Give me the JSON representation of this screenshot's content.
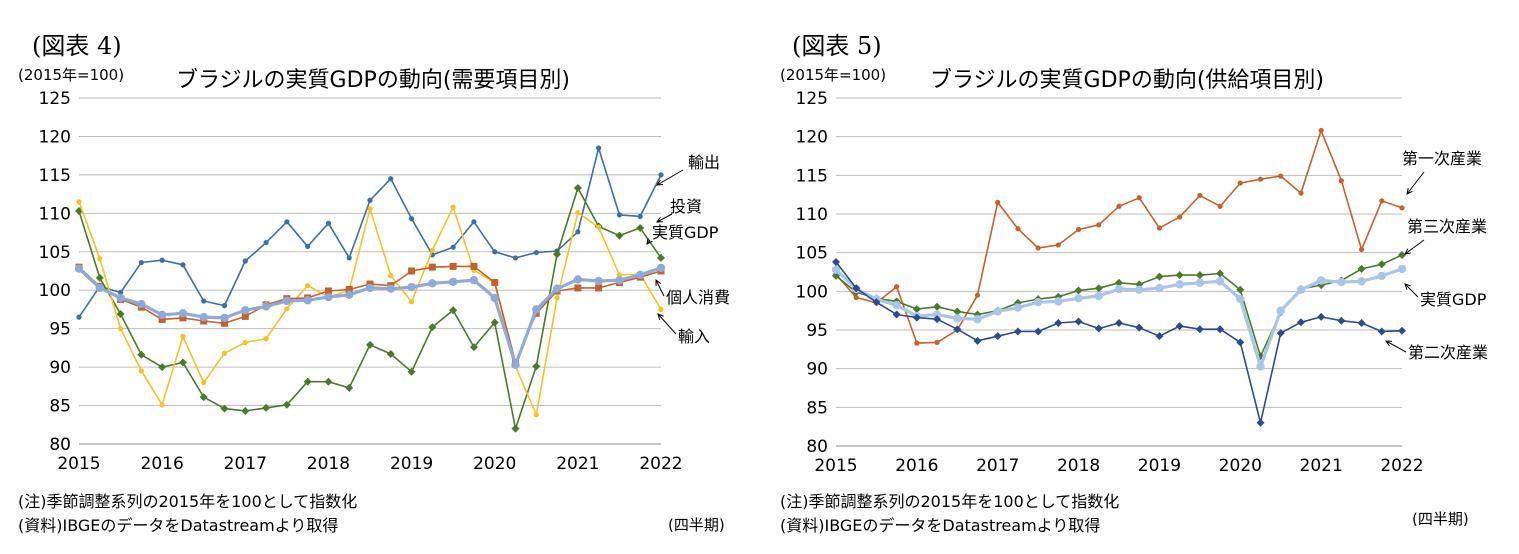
{
  "charts": [
    {
      "figure_label": "(図表 4)",
      "unit_label": "(2015年=100)",
      "title": "ブラジルの実質GDPの動向(需要項目別)",
      "note": "(注)季節調整系列の2015年を100として指数化",
      "source": "(資料)IBGEのデータをDatastreamより取得",
      "frequency": "(四半期)"
    },
    {
      "figure_label": "(図表 5)",
      "unit_label": "(2015年=100)",
      "title": "ブラジルの実質GDPの動向(供給項目別)",
      "note": "(注)季節調整系列の2015年を100として指数化",
      "source": "(資料)IBGEのデータをDatastreamより取得",
      "frequency": "(四半期)"
    }
  ],
  "chart_data": [
    {
      "type": "line",
      "title": "ブラジルの実質GDPの動向(需要項目別)",
      "ylabel": "(2015年=100)",
      "xlabel": "",
      "ylim": [
        80,
        125
      ],
      "yticks": [
        80,
        85,
        90,
        95,
        100,
        105,
        110,
        115,
        120,
        125
      ],
      "xticks": [
        "2015",
        "2016",
        "2017",
        "2018",
        "2019",
        "2020",
        "2021",
        "2022"
      ],
      "x_quarters_start": "2015",
      "grid": true,
      "series": [
        {
          "name": "輸出",
          "color": "#3a6fa8",
          "marker": "circle",
          "values": [
            96.5,
            100.5,
            99.7,
            103.6,
            103.9,
            103.3,
            98.6,
            98.0,
            103.8,
            106.2,
            108.9,
            105.7,
            108.7,
            104.2,
            111.7,
            114.5,
            109.3,
            104.6,
            105.6,
            108.9,
            105.0,
            104.2,
            104.9,
            105.1,
            107.6,
            118.5,
            109.8,
            109.6,
            115.0
          ]
        },
        {
          "name": "投資",
          "color": "#4a7a2c",
          "marker": "diamond",
          "values": [
            110.3,
            101.6,
            96.9,
            91.6,
            90.0,
            90.6,
            86.1,
            84.6,
            84.3,
            84.7,
            85.1,
            88.1,
            88.1,
            87.3,
            92.9,
            91.7,
            89.4,
            95.2,
            97.4,
            92.6,
            95.8,
            82.0,
            90.1,
            104.7,
            113.3,
            108.3,
            107.1,
            108.1,
            104.2
          ]
        },
        {
          "name": "輸入",
          "color": "#f5c028",
          "marker": "circle",
          "values": [
            111.5,
            104.1,
            95.0,
            89.5,
            85.1,
            94.0,
            88.0,
            91.8,
            93.2,
            93.7,
            97.6,
            100.6,
            99.1,
            100.0,
            110.6,
            101.9,
            98.5,
            105.2,
            110.8,
            102.6,
            101.0,
            90.1,
            83.8,
            99.0,
            110.1,
            108.2,
            102.0,
            102.1,
            97.5
          ]
        },
        {
          "name": "個人消費",
          "color": "#c5622b",
          "marker": "square",
          "values": [
            103.0,
            100.5,
            98.8,
            97.8,
            96.2,
            96.4,
            96.0,
            95.7,
            96.6,
            98.1,
            98.9,
            99.0,
            99.9,
            100.1,
            100.8,
            100.6,
            102.5,
            103.0,
            103.1,
            103.1,
            101.0,
            90.6,
            97.0,
            99.9,
            100.3,
            100.3,
            101.0,
            101.7,
            102.5
          ]
        },
        {
          "name": "実質GDP",
          "color": "#8faad9",
          "marker": "circle",
          "values": [
            102.8,
            100.3,
            99.0,
            98.2,
            96.8,
            97.0,
            96.5,
            96.4,
            97.4,
            97.9,
            98.6,
            98.7,
            99.1,
            99.4,
            100.3,
            100.2,
            100.4,
            100.9,
            101.1,
            101.3,
            99.0,
            90.3,
            97.5,
            100.2,
            101.4,
            101.2,
            101.3,
            102.0,
            102.9
          ]
        }
      ],
      "annotations": [
        "輸出",
        "投資",
        "実質GDP",
        "個人消費",
        "輸入"
      ]
    },
    {
      "type": "line",
      "title": "ブラジルの実質GDPの動向(供給項目別)",
      "ylabel": "(2015年=100)",
      "xlabel": "",
      "ylim": [
        80,
        125
      ],
      "yticks": [
        80,
        85,
        90,
        95,
        100,
        105,
        110,
        115,
        120,
        125
      ],
      "xticks": [
        "2015",
        "2016",
        "2017",
        "2018",
        "2019",
        "2020",
        "2021",
        "2022"
      ],
      "x_quarters_start": "2015",
      "grid": true,
      "series": [
        {
          "name": "第一次産業",
          "color": "#c5622b",
          "marker": "circle",
          "values": [
            102.2,
            99.2,
            98.5,
            100.6,
            93.3,
            93.4,
            95.0,
            99.5,
            111.5,
            108.1,
            105.6,
            106.0,
            108.0,
            108.6,
            111.0,
            112.1,
            108.2,
            109.6,
            112.4,
            111.0,
            114.0,
            114.5,
            114.9,
            112.7,
            120.8,
            114.3,
            105.4,
            111.7,
            110.8
          ]
        },
        {
          "name": "第三次産業",
          "color": "#4a7a2c",
          "marker": "diamond",
          "values": [
            102.0,
            99.9,
            99.1,
            98.7,
            97.7,
            98.0,
            97.4,
            97.0,
            97.5,
            98.5,
            99.0,
            99.3,
            100.1,
            100.4,
            101.1,
            100.9,
            101.9,
            102.1,
            102.1,
            102.3,
            100.2,
            91.6,
            97.3,
            100.3,
            100.8,
            101.4,
            102.9,
            103.5,
            104.7
          ]
        },
        {
          "name": "実質GDP",
          "color": "#a9c6e8",
          "marker": "circle",
          "values": [
            102.8,
            100.3,
            99.0,
            98.2,
            96.8,
            97.0,
            96.5,
            96.4,
            97.4,
            97.9,
            98.6,
            98.7,
            99.1,
            99.4,
            100.3,
            100.2,
            100.4,
            100.9,
            101.1,
            101.3,
            99.0,
            90.3,
            97.5,
            100.2,
            101.4,
            101.2,
            101.3,
            102.0,
            102.9
          ]
        },
        {
          "name": "第二次産業",
          "color": "#2d4c8c",
          "marker": "diamond",
          "values": [
            103.8,
            100.4,
            98.6,
            97.0,
            96.6,
            96.4,
            95.1,
            93.6,
            94.2,
            94.8,
            94.8,
            95.9,
            96.1,
            95.2,
            95.9,
            95.3,
            94.2,
            95.5,
            95.1,
            95.1,
            93.4,
            83.0,
            94.6,
            96.0,
            96.7,
            96.2,
            95.9,
            94.8,
            94.9
          ]
        }
      ],
      "annotations": [
        "第一次産業",
        "第三次産業",
        "実質GDP",
        "第二次産業"
      ]
    }
  ]
}
